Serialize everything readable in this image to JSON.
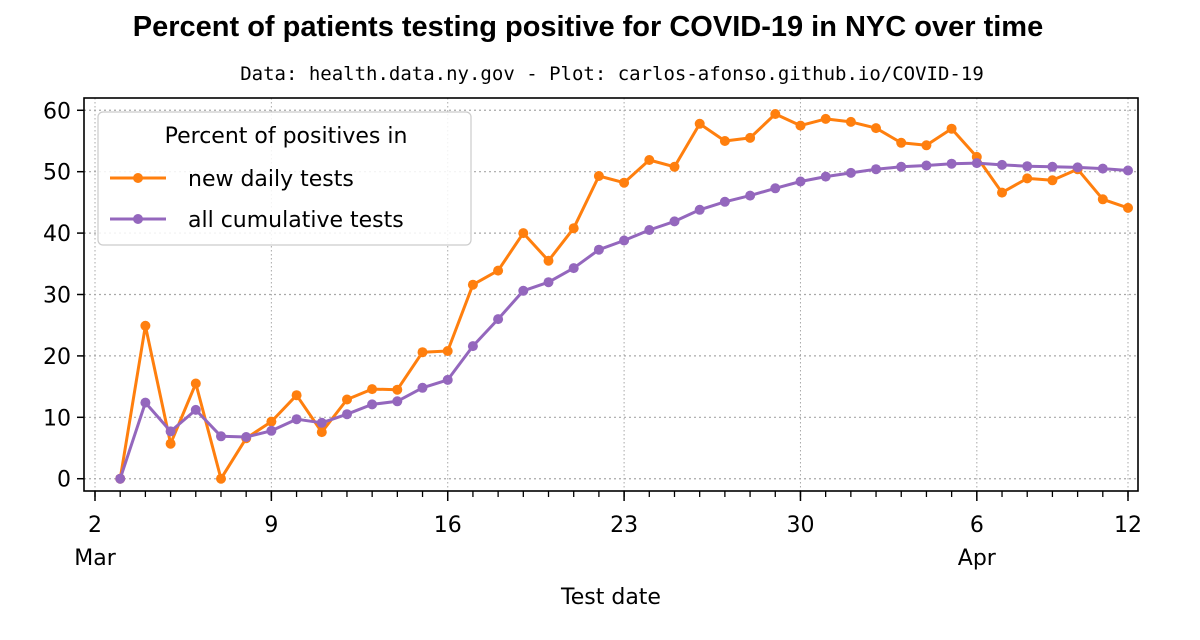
{
  "chart_data": {
    "type": "line",
    "title": "Percent of patients testing positive for COVID-19 in NYC over time",
    "subtitle": "Data: health.data.ny.gov - Plot: carlos-afonso.github.io/COVID-19",
    "xlabel": "Test date",
    "ylabel": "",
    "x_start": "2020-03-03",
    "xlim": [
      "2020-03-02",
      "2020-04-12"
    ],
    "ylim": [
      -2,
      62
    ],
    "y_ticks": [
      0,
      10,
      20,
      30,
      40,
      50,
      60
    ],
    "x_major_ticks": [
      {
        "date": "2020-03-02",
        "label": "2",
        "sublabel": "Mar"
      },
      {
        "date": "2020-03-09",
        "label": "9",
        "sublabel": ""
      },
      {
        "date": "2020-03-16",
        "label": "16",
        "sublabel": ""
      },
      {
        "date": "2020-03-23",
        "label": "23",
        "sublabel": ""
      },
      {
        "date": "2020-03-30",
        "label": "30",
        "sublabel": ""
      },
      {
        "date": "2020-04-06",
        "label": "6",
        "sublabel": "Apr"
      },
      {
        "date": "2020-04-12",
        "label": "12",
        "sublabel": ""
      }
    ],
    "grid": true,
    "legend_title": "Percent of positives in",
    "legend_position": "upper-left",
    "series": [
      {
        "name": "new daily tests",
        "color": "#ff7f0e",
        "values": [
          0,
          24.9,
          5.7,
          15.5,
          0,
          6.6,
          9.3,
          13.6,
          7.6,
          12.9,
          14.6,
          14.5,
          20.6,
          20.8,
          31.6,
          33.9,
          40.0,
          35.5,
          40.8,
          49.3,
          48.2,
          51.9,
          50.8,
          57.8,
          55.0,
          55.5,
          59.4,
          57.5,
          58.6,
          58.1,
          57.1,
          54.7,
          54.3,
          57.0,
          52.4,
          46.6,
          48.9,
          48.6,
          50.4,
          45.5,
          44.1
        ]
      },
      {
        "name": "all cumulative tests",
        "color": "#9467bd",
        "values": [
          0,
          12.4,
          7.7,
          11.2,
          6.9,
          6.8,
          7.8,
          9.7,
          9.1,
          10.5,
          12.1,
          12.6,
          14.8,
          16.1,
          21.6,
          26.0,
          30.6,
          32.0,
          34.3,
          37.3,
          38.8,
          40.5,
          41.9,
          43.8,
          45.1,
          46.1,
          47.3,
          48.4,
          49.2,
          49.8,
          50.4,
          50.8,
          51.0,
          51.3,
          51.4,
          51.1,
          50.9,
          50.8,
          50.7,
          50.5,
          50.2
        ]
      }
    ]
  }
}
